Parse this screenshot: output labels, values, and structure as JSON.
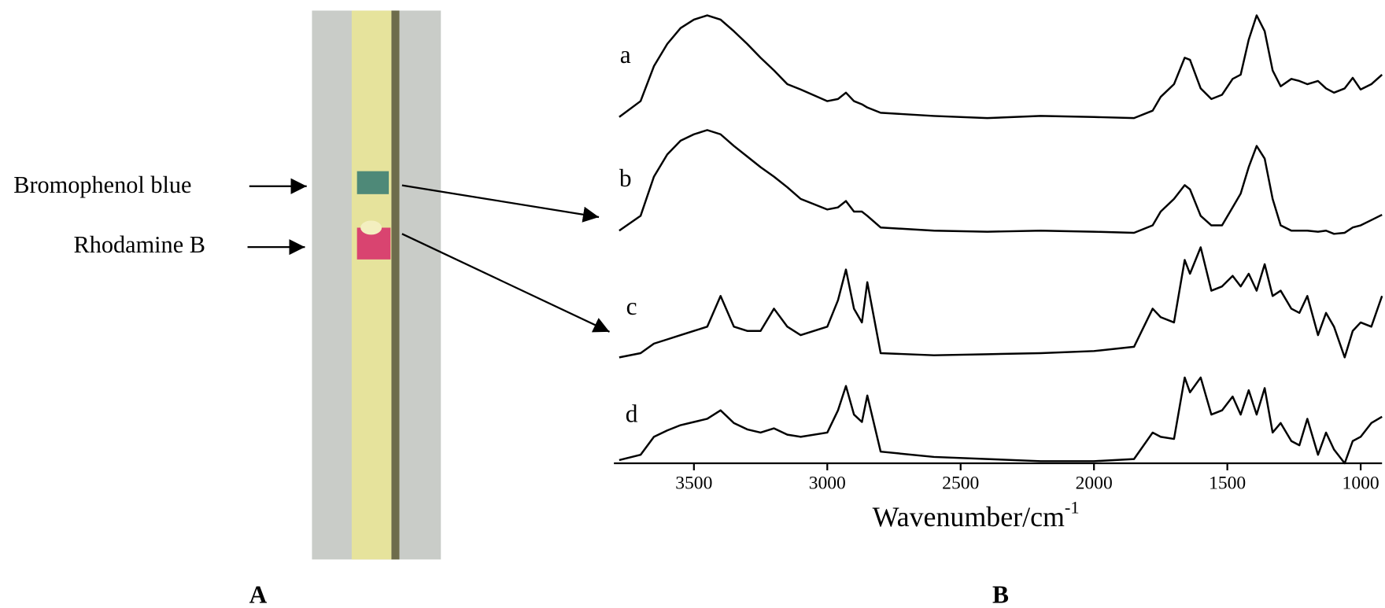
{
  "panel_a": {
    "label": "A",
    "annotations": [
      "Bromophenol blue",
      "Rhodamine B"
    ]
  },
  "panel_b": {
    "label": "B"
  },
  "chart_data": {
    "type": "line",
    "xlabel": "Wavenumber/cm",
    "xlabel_superscript": "-1",
    "xlim": [
      3800,
      920
    ],
    "xticks": [
      3500,
      3000,
      2500,
      2000,
      1500,
      1000
    ],
    "x": [
      3780,
      3700,
      3650,
      3600,
      3550,
      3500,
      3450,
      3400,
      3350,
      3300,
      3250,
      3200,
      3150,
      3100,
      3000,
      2960,
      2930,
      2900,
      2870,
      2850,
      2800,
      2600,
      2400,
      2200,
      2000,
      1850,
      1780,
      1750,
      1700,
      1660,
      1640,
      1600,
      1560,
      1520,
      1480,
      1450,
      1420,
      1390,
      1360,
      1330,
      1300,
      1260,
      1230,
      1200,
      1160,
      1130,
      1100,
      1060,
      1030,
      1000,
      960,
      920
    ],
    "series": [
      {
        "name": "a",
        "color": "#000000",
        "values": [
          2,
          17,
          50,
          71,
          86,
          94,
          98,
          94,
          83,
          71,
          58,
          46,
          33,
          28,
          17,
          19,
          25,
          17,
          14,
          11,
          6,
          3,
          1,
          3,
          2,
          1,
          8,
          21,
          33,
          58,
          56,
          29,
          19,
          23,
          38,
          42,
          75,
          98,
          83,
          46,
          31,
          38,
          36,
          33,
          36,
          29,
          25,
          29,
          39,
          28,
          33,
          42
        ]
      },
      {
        "name": "b",
        "color": "#000000",
        "values": [
          3,
          17,
          54,
          75,
          88,
          94,
          98,
          94,
          83,
          73,
          63,
          54,
          44,
          33,
          23,
          25,
          31,
          21,
          21,
          17,
          6,
          3,
          2,
          3,
          2,
          1,
          8,
          21,
          33,
          46,
          42,
          17,
          8,
          8,
          25,
          38,
          63,
          83,
          71,
          33,
          8,
          3,
          3,
          3,
          2,
          3,
          0,
          1,
          6,
          8,
          13,
          18
        ]
      },
      {
        "name": "c",
        "color": "#000000",
        "values": [
          0,
          4,
          13,
          17,
          21,
          25,
          29,
          58,
          29,
          25,
          25,
          46,
          29,
          21,
          29,
          54,
          83,
          46,
          33,
          71,
          4,
          2,
          3,
          4,
          6,
          10,
          46,
          38,
          33,
          92,
          79,
          104,
          63,
          67,
          77,
          67,
          79,
          63,
          88,
          58,
          63,
          46,
          42,
          58,
          21,
          42,
          29,
          0,
          25,
          33,
          29,
          58
        ]
      },
      {
        "name": "d",
        "color": "#000000",
        "values": [
          3,
          8,
          25,
          31,
          36,
          39,
          42,
          50,
          38,
          32,
          29,
          33,
          27,
          25,
          29,
          50,
          73,
          46,
          39,
          64,
          11,
          6,
          4,
          2,
          2,
          4,
          29,
          25,
          23,
          81,
          67,
          81,
          46,
          50,
          63,
          46,
          69,
          46,
          71,
          29,
          38,
          21,
          17,
          42,
          8,
          29,
          13,
          0,
          21,
          25,
          38,
          44
        ]
      }
    ]
  }
}
